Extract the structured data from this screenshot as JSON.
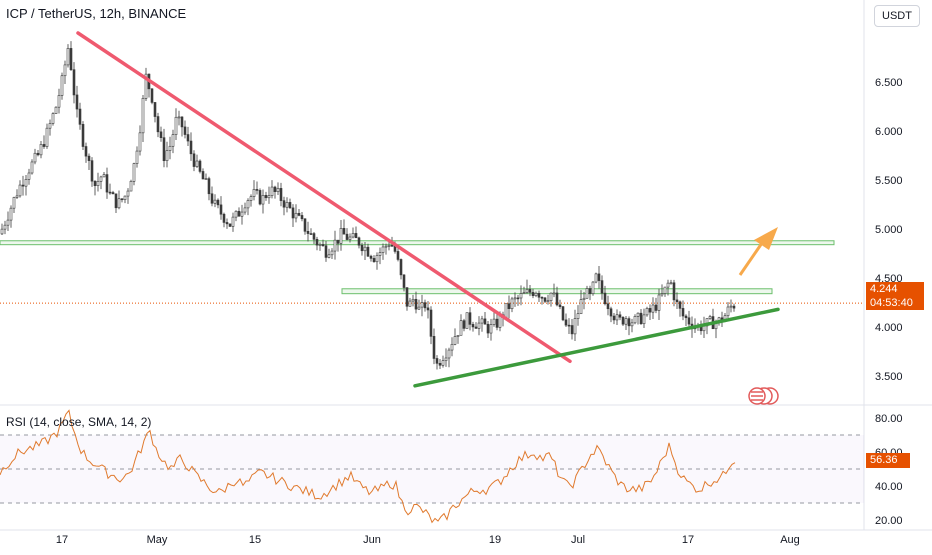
{
  "header": {
    "title": "ICP / TetherUS, 12h, BINANCE",
    "currency": "USDT"
  },
  "price_tag": {
    "value": "4.244",
    "countdown": "04:53:40"
  },
  "rsi_panel": {
    "label": "RSI (14, close, SMA, 14, 2)",
    "value_tag": "56.36"
  },
  "colors": {
    "up": "#26a69a",
    "down": "#ef5350",
    "candle": "#3a3a3a",
    "trend_down": "#ef5a6f",
    "trend_up": "#3c9a3c",
    "zone": "#6cbf6c",
    "arrow": "#f7a94b",
    "rsi_line": "#e07a2e",
    "price_tag": "#e65100"
  },
  "chart_data": [
    {
      "type": "candlestick",
      "title": "ICP / TetherUS, 12h, BINANCE",
      "y_ticks": [
        "6.500",
        "6.000",
        "5.500",
        "5.000",
        "4.500",
        "4.000",
        "3.500"
      ],
      "x_ticks": [
        "17",
        "May",
        "15",
        "Jun",
        "19",
        "Jul",
        "17",
        "Aug"
      ],
      "ylim": [
        3.3,
        7.0
      ],
      "current_price": 4.244,
      "close_path": [
        [
          0,
          4.95
        ],
        [
          8,
          5.15
        ],
        [
          18,
          5.4
        ],
        [
          28,
          5.6
        ],
        [
          38,
          5.75
        ],
        [
          48,
          6.0
        ],
        [
          56,
          6.25
        ],
        [
          62,
          6.5
        ],
        [
          68,
          6.85
        ],
        [
          72,
          6.6
        ],
        [
          76,
          6.2
        ],
        [
          82,
          5.95
        ],
        [
          88,
          5.7
        ],
        [
          95,
          5.45
        ],
        [
          102,
          5.55
        ],
        [
          110,
          5.35
        ],
        [
          118,
          5.25
        ],
        [
          126,
          5.35
        ],
        [
          134,
          5.65
        ],
        [
          140,
          6.05
        ],
        [
          146,
          6.55
        ],
        [
          152,
          6.35
        ],
        [
          158,
          6.0
        ],
        [
          164,
          5.75
        ],
        [
          170,
          5.85
        ],
        [
          176,
          6.1
        ],
        [
          182,
          6.05
        ],
        [
          190,
          5.8
        ],
        [
          198,
          5.6
        ],
        [
          206,
          5.45
        ],
        [
          214,
          5.25
        ],
        [
          222,
          5.15
        ],
        [
          230,
          5.05
        ],
        [
          238,
          5.15
        ],
        [
          246,
          5.3
        ],
        [
          254,
          5.35
        ],
        [
          262,
          5.3
        ],
        [
          270,
          5.4
        ],
        [
          278,
          5.35
        ],
        [
          286,
          5.25
        ],
        [
          294,
          5.15
        ],
        [
          302,
          5.05
        ],
        [
          310,
          4.95
        ],
        [
          318,
          4.85
        ],
        [
          326,
          4.78
        ],
        [
          334,
          4.85
        ],
        [
          342,
          4.95
        ],
        [
          350,
          4.9
        ],
        [
          358,
          4.88
        ],
        [
          366,
          4.8
        ],
        [
          374,
          4.72
        ],
        [
          382,
          4.78
        ],
        [
          390,
          4.88
        ],
        [
          396,
          4.75
        ],
        [
          402,
          4.45
        ],
        [
          408,
          4.2
        ],
        [
          414,
          4.3
        ],
        [
          420,
          4.15
        ],
        [
          426,
          4.25
        ],
        [
          432,
          3.85
        ],
        [
          436,
          3.6
        ],
        [
          442,
          3.7
        ],
        [
          448,
          3.78
        ],
        [
          454,
          3.9
        ],
        [
          460,
          4.0
        ],
        [
          466,
          4.08
        ],
        [
          474,
          4.05
        ],
        [
          482,
          4.02
        ],
        [
          490,
          3.98
        ],
        [
          498,
          4.05
        ],
        [
          504,
          4.15
        ],
        [
          512,
          4.25
        ],
        [
          520,
          4.3
        ],
        [
          528,
          4.35
        ],
        [
          536,
          4.38
        ],
        [
          544,
          4.3
        ],
        [
          552,
          4.35
        ],
        [
          560,
          4.15
        ],
        [
          566,
          4.0
        ],
        [
          572,
          3.95
        ],
        [
          578,
          4.15
        ],
        [
          584,
          4.35
        ],
        [
          590,
          4.3
        ],
        [
          596,
          4.5
        ],
        [
          602,
          4.35
        ],
        [
          610,
          4.2
        ],
        [
          618,
          4.05
        ],
        [
          626,
          4.1
        ],
        [
          634,
          4.05
        ],
        [
          642,
          4.1
        ],
        [
          650,
          4.15
        ],
        [
          658,
          4.25
        ],
        [
          664,
          4.35
        ],
        [
          670,
          4.48
        ],
        [
          676,
          4.25
        ],
        [
          682,
          4.12
        ],
        [
          690,
          4.05
        ],
        [
          698,
          4.0
        ],
        [
          706,
          4.02
        ],
        [
          712,
          4.05
        ],
        [
          718,
          4.05
        ],
        [
          724,
          4.1
        ],
        [
          730,
          4.2
        ],
        [
          736,
          4.244
        ]
      ],
      "support_zones": [
        {
          "low": 4.84,
          "high": 4.88
        },
        {
          "low": 4.34,
          "high": 4.39
        }
      ],
      "trendlines": [
        {
          "name": "descending resistance",
          "from": [
            78,
            7.0
          ],
          "to": [
            570,
            3.65
          ]
        },
        {
          "name": "ascending support",
          "from": [
            415,
            3.4
          ],
          "to": [
            778,
            4.18
          ]
        }
      ]
    },
    {
      "type": "line",
      "title": "RSI (14, close, SMA, 14, 2)",
      "y_ticks": [
        "80.00",
        "60.00",
        "40.00",
        "20.00"
      ],
      "ylim": [
        16,
        86
      ],
      "levels": [
        70,
        50,
        30
      ],
      "last_value": 56.36,
      "rsi": [
        [
          0,
          48
        ],
        [
          10,
          55
        ],
        [
          20,
          60
        ],
        [
          30,
          62
        ],
        [
          40,
          64
        ],
        [
          50,
          68
        ],
        [
          58,
          72
        ],
        [
          64,
          78
        ],
        [
          68,
          84
        ],
        [
          74,
          72
        ],
        [
          82,
          60
        ],
        [
          90,
          55
        ],
        [
          98,
          52
        ],
        [
          106,
          48
        ],
        [
          114,
          46
        ],
        [
          122,
          44
        ],
        [
          130,
          48
        ],
        [
          138,
          58
        ],
        [
          144,
          66
        ],
        [
          150,
          72
        ],
        [
          156,
          62
        ],
        [
          164,
          54
        ],
        [
          172,
          50
        ],
        [
          180,
          56
        ],
        [
          188,
          52
        ],
        [
          196,
          46
        ],
        [
          204,
          42
        ],
        [
          212,
          38
        ],
        [
          220,
          36
        ],
        [
          228,
          40
        ],
        [
          236,
          44
        ],
        [
          244,
          40
        ],
        [
          252,
          44
        ],
        [
          260,
          48
        ],
        [
          268,
          46
        ],
        [
          276,
          44
        ],
        [
          284,
          42
        ],
        [
          292,
          40
        ],
        [
          300,
          38
        ],
        [
          310,
          36
        ],
        [
          320,
          34
        ],
        [
          330,
          38
        ],
        [
          340,
          42
        ],
        [
          350,
          46
        ],
        [
          360,
          40
        ],
        [
          370,
          36
        ],
        [
          380,
          38
        ],
        [
          390,
          42
        ],
        [
          396,
          40
        ],
        [
          402,
          30
        ],
        [
          408,
          26
        ],
        [
          416,
          28
        ],
        [
          424,
          25
        ],
        [
          432,
          20
        ],
        [
          438,
          18
        ],
        [
          446,
          22
        ],
        [
          454,
          28
        ],
        [
          462,
          32
        ],
        [
          470,
          36
        ],
        [
          478,
          38
        ],
        [
          486,
          38
        ],
        [
          494,
          40
        ],
        [
          502,
          44
        ],
        [
          510,
          50
        ],
        [
          518,
          55
        ],
        [
          526,
          58
        ],
        [
          534,
          60
        ],
        [
          542,
          56
        ],
        [
          550,
          58
        ],
        [
          558,
          48
        ],
        [
          566,
          40
        ],
        [
          574,
          42
        ],
        [
          582,
          50
        ],
        [
          590,
          58
        ],
        [
          598,
          62
        ],
        [
          606,
          54
        ],
        [
          614,
          46
        ],
        [
          622,
          40
        ],
        [
          630,
          38
        ],
        [
          640,
          38
        ],
        [
          650,
          42
        ],
        [
          658,
          50
        ],
        [
          664,
          58
        ],
        [
          670,
          64
        ],
        [
          676,
          52
        ],
        [
          684,
          44
        ],
        [
          692,
          40
        ],
        [
          700,
          38
        ],
        [
          708,
          42
        ],
        [
          716,
          44
        ],
        [
          724,
          46
        ],
        [
          730,
          54
        ],
        [
          736,
          56.36
        ]
      ]
    }
  ]
}
